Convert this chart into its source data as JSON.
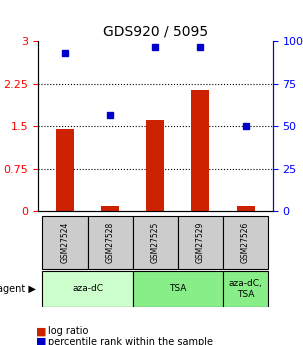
{
  "title": "GDS920 / 5095",
  "samples": [
    "GSM27524",
    "GSM27528",
    "GSM27525",
    "GSM27529",
    "GSM27526"
  ],
  "log_ratio": [
    1.46,
    0.1,
    1.62,
    2.15,
    0.1
  ],
  "percentile_rank": [
    93,
    57,
    97,
    97,
    50
  ],
  "agents": [
    {
      "label": "aza-dC",
      "samples": [
        0,
        1
      ],
      "color": "#ccffcc"
    },
    {
      "label": "TSA",
      "samples": [
        2,
        3
      ],
      "color": "#99ee99"
    },
    {
      "label": "aza-dC,\nTSA",
      "samples": [
        4,
        4
      ],
      "color": "#99ee99"
    }
  ],
  "bar_color": "#cc2200",
  "dot_color": "#0000cc",
  "ylim_left": [
    0,
    3
  ],
  "ylim_right": [
    0,
    100
  ],
  "yticks_left": [
    0,
    0.75,
    1.5,
    2.25,
    3
  ],
  "ytick_labels_left": [
    "0",
    "0.75",
    "1.5",
    "2.25",
    "3"
  ],
  "yticks_right": [
    0,
    25,
    50,
    75,
    100
  ],
  "ytick_labels_right": [
    "0",
    "25",
    "50",
    "75",
    "100%"
  ],
  "hlines": [
    0.75,
    1.5,
    2.25
  ],
  "agent_label": "agent",
  "legend_log": "log ratio",
  "legend_pct": "percentile rank within the sample",
  "sample_box_color": "#cccccc",
  "bar_width": 0.4
}
